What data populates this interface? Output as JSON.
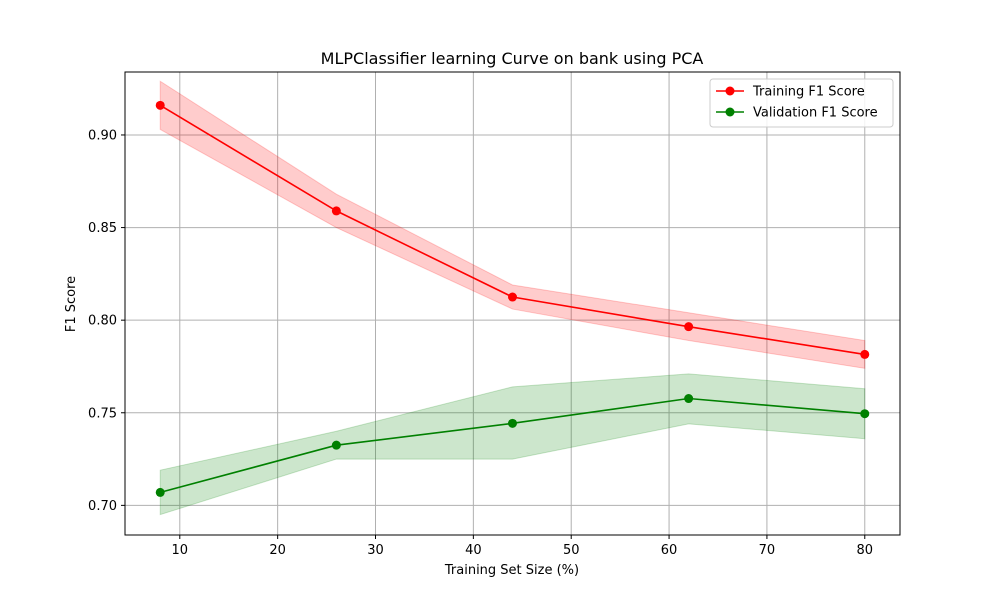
{
  "chart_data": {
    "type": "line",
    "title": "MLPClassifier learning Curve on bank using PCA",
    "xlabel": "Training Set Size (%)",
    "ylabel": "F1 Score",
    "xlim": [
      4.4,
      83.6
    ],
    "ylim": [
      0.684,
      0.934
    ],
    "xticks": [
      10,
      20,
      30,
      40,
      50,
      60,
      70,
      80
    ],
    "yticks": [
      0.7,
      0.75,
      0.8,
      0.85,
      0.9
    ],
    "xtick_labels": [
      "10",
      "20",
      "30",
      "40",
      "50",
      "60",
      "70",
      "80"
    ],
    "ytick_labels": [
      "0.70",
      "0.75",
      "0.80",
      "0.85",
      "0.90"
    ],
    "grid": true,
    "legend_position": "top-right",
    "x": [
      8,
      26,
      44,
      62,
      80
    ],
    "series": [
      {
        "name": "Training F1 Score",
        "color": "#ff0000",
        "band_color": "#ff0000",
        "values": [
          0.916,
          0.859,
          0.8125,
          0.7965,
          0.7815
        ],
        "upper": [
          0.929,
          0.868,
          0.819,
          0.804,
          0.789
        ],
        "lower": [
          0.903,
          0.85,
          0.806,
          0.789,
          0.774
        ]
      },
      {
        "name": "Validation F1 Score",
        "color": "#008000",
        "band_color": "#008000",
        "values": [
          0.707,
          0.7325,
          0.7443,
          0.7577,
          0.7495
        ],
        "upper": [
          0.719,
          0.74,
          0.764,
          0.771,
          0.763
        ],
        "lower": [
          0.695,
          0.725,
          0.725,
          0.744,
          0.736
        ]
      }
    ]
  }
}
